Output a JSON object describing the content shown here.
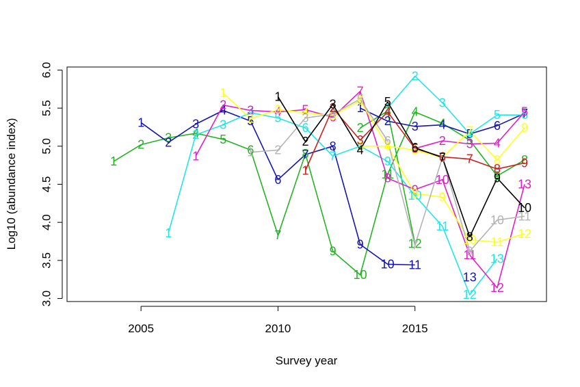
{
  "chart_data": {
    "type": "line",
    "xlabel": "Survey year",
    "ylabel": "Log10 (abundance index)",
    "xlim": [
      2002.3,
      2019.8
    ],
    "ylim": [
      2.96,
      6.04
    ],
    "xticks": [
      "2005",
      "2010",
      "2015"
    ],
    "yticks": [
      "3.0",
      "3.5",
      "4.0",
      "4.5",
      "5.0",
      "5.5",
      "6.0"
    ],
    "grid": false,
    "legend": "none",
    "series": [
      {
        "color": "#22B422",
        "points": [
          {
            "x": 2004,
            "y": 4.8,
            "label": "1"
          },
          {
            "x": 2005,
            "y": 5.02,
            "label": "2"
          },
          {
            "x": 2006,
            "y": 5.11,
            "label": "3"
          },
          {
            "x": 2007,
            "y": 5.17,
            "label": "4"
          },
          {
            "x": 2008,
            "y": 5.09,
            "label": "5"
          },
          {
            "x": 2009,
            "y": 4.95,
            "label": "6"
          },
          {
            "x": 2010,
            "y": 3.83,
            "label": "7"
          },
          {
            "x": 2011,
            "y": 4.9,
            "label": "8"
          },
          {
            "x": 2012,
            "y": 3.62,
            "label": "9"
          },
          {
            "x": 2013,
            "y": 3.31,
            "label": "10"
          },
          {
            "x": 2014,
            "y": 4.63,
            "label": "11"
          },
          {
            "x": 2015,
            "y": 5.45,
            "label": "4"
          },
          {
            "x": 2016,
            "y": 5.3,
            "label": "4"
          },
          {
            "x": 2017,
            "y": 5.08,
            "label": "5"
          },
          {
            "x": 2018,
            "y": 4.61,
            "label": "9"
          },
          {
            "x": 2019,
            "y": 4.82,
            "label": "8"
          }
        ]
      },
      {
        "color": "#22B422",
        "points": [
          {
            "x": 2013,
            "y": 5.24,
            "label": "2"
          },
          {
            "x": 2014,
            "y": 5.46,
            "label": "3"
          },
          {
            "x": 2015,
            "y": 3.72,
            "label": "12"
          }
        ]
      },
      {
        "color": "#1414B4",
        "points": [
          {
            "x": 2005,
            "y": 5.31,
            "label": "1"
          },
          {
            "x": 2006,
            "y": 5.05,
            "label": "2"
          },
          {
            "x": 2007,
            "y": 5.29,
            "label": "3"
          },
          {
            "x": 2008,
            "y": 5.47,
            "label": "4"
          },
          {
            "x": 2009,
            "y": 5.33,
            "label": "5"
          },
          {
            "x": 2010,
            "y": 4.56,
            "label": "6"
          },
          {
            "x": 2011,
            "y": 4.89,
            "label": "7"
          },
          {
            "x": 2012,
            "y": 5.0,
            "label": "8"
          },
          {
            "x": 2013,
            "y": 3.71,
            "label": "9"
          },
          {
            "x": 2014,
            "y": 3.45,
            "label": "10"
          },
          {
            "x": 2015,
            "y": 3.44,
            "label": "11"
          }
        ]
      },
      {
        "color": "#1414B4",
        "points": [
          {
            "x": 2013,
            "y": 5.5,
            "label": "1"
          },
          {
            "x": 2014,
            "y": 5.33,
            "label": "2"
          },
          {
            "x": 2015,
            "y": 5.26,
            "label": "3"
          },
          {
            "x": 2016,
            "y": 5.28,
            "label": "4"
          },
          {
            "x": 2017,
            "y": 5.16,
            "label": "5"
          },
          {
            "x": 2018,
            "y": 5.27,
            "label": "6"
          },
          {
            "x": 2019,
            "y": 5.43,
            "label": "7"
          }
        ]
      },
      {
        "color": "#1414B4",
        "points": [
          {
            "x": 2017,
            "y": 3.28,
            "label": "13"
          }
        ]
      },
      {
        "color": "#22E6E6",
        "points": [
          {
            "x": 2006,
            "y": 3.86,
            "label": "1"
          },
          {
            "x": 2007,
            "y": 5.15,
            "label": "2"
          },
          {
            "x": 2008,
            "y": 5.28,
            "label": "3"
          },
          {
            "x": 2009,
            "y": 5.44,
            "label": "4"
          },
          {
            "x": 2010,
            "y": 5.37,
            "label": "5"
          },
          {
            "x": 2011,
            "y": 5.24,
            "label": "6"
          },
          {
            "x": 2012,
            "y": 4.87,
            "label": "7"
          },
          {
            "x": 2013,
            "y": 5.0,
            "label": "8"
          },
          {
            "x": 2014,
            "y": 4.8,
            "label": "9"
          },
          {
            "x": 2015,
            "y": 4.35,
            "label": "10"
          },
          {
            "x": 2016,
            "y": 3.95,
            "label": "11"
          },
          {
            "x": 2017,
            "y": 3.05,
            "label": "12"
          },
          {
            "x": 2018,
            "y": 3.52,
            "label": "13"
          }
        ]
      },
      {
        "color": "#22E6E6",
        "points": [
          {
            "x": 2014,
            "y": 5.5,
            "label": "1"
          },
          {
            "x": 2015,
            "y": 5.92,
            "label": "2"
          },
          {
            "x": 2016,
            "y": 5.57,
            "label": "3"
          },
          {
            "x": 2017,
            "y": 5.16,
            "label": "4"
          },
          {
            "x": 2018,
            "y": 5.41,
            "label": "5"
          },
          {
            "x": 2019,
            "y": 5.41,
            "label": "6"
          }
        ]
      },
      {
        "color": "#E11EC8",
        "points": [
          {
            "x": 2007,
            "y": 4.87,
            "label": "1"
          },
          {
            "x": 2008,
            "y": 5.54,
            "label": "2"
          },
          {
            "x": 2009,
            "y": 5.47,
            "label": "3"
          },
          {
            "x": 2010,
            "y": 5.45,
            "label": "4"
          },
          {
            "x": 2011,
            "y": 5.48,
            "label": "5"
          },
          {
            "x": 2012,
            "y": 5.38,
            "label": "6"
          },
          {
            "x": 2013,
            "y": 5.72,
            "label": "7"
          },
          {
            "x": 2014,
            "y": 4.58,
            "label": "8"
          },
          {
            "x": 2015,
            "y": 4.43,
            "label": "9"
          },
          {
            "x": 2016,
            "y": 4.56,
            "label": "10"
          },
          {
            "x": 2017,
            "y": 3.57,
            "label": "11"
          },
          {
            "x": 2018,
            "y": 3.14,
            "label": "12"
          },
          {
            "x": 2019,
            "y": 4.5,
            "label": "13"
          }
        ]
      },
      {
        "color": "#E11EC8",
        "points": [
          {
            "x": 2015,
            "y": 4.97,
            "label": "1"
          },
          {
            "x": 2016,
            "y": 5.07,
            "label": "2"
          },
          {
            "x": 2017,
            "y": 5.03,
            "label": "3"
          },
          {
            "x": 2018,
            "y": 5.04,
            "label": "4"
          },
          {
            "x": 2019,
            "y": 5.45,
            "label": "5"
          }
        ]
      },
      {
        "color": "#FFFF1E",
        "points": [
          {
            "x": 2008,
            "y": 5.7,
            "label": "1"
          },
          {
            "x": 2009,
            "y": 5.36,
            "label": "2"
          },
          {
            "x": 2010,
            "y": 5.48,
            "label": "3"
          },
          {
            "x": 2011,
            "y": 5.44,
            "label": "4"
          },
          {
            "x": 2012,
            "y": 5.4,
            "label": "5"
          },
          {
            "x": 2013,
            "y": 5.6,
            "label": "6"
          },
          {
            "x": 2014,
            "y": 5.0,
            "label": "7"
          },
          {
            "x": 2015,
            "y": 4.38,
            "label": "8"
          },
          {
            "x": 2016,
            "y": 4.33,
            "label": "9"
          },
          {
            "x": 2017,
            "y": 3.77,
            "label": "10"
          },
          {
            "x": 2018,
            "y": 3.74,
            "label": "11"
          },
          {
            "x": 2019,
            "y": 3.85,
            "label": "12"
          }
        ]
      },
      {
        "color": "#FFFF1E",
        "points": [
          {
            "x": 2013,
            "y": 5.0,
            "label": "3"
          },
          {
            "x": 2014,
            "y": 5.0,
            "label": "4"
          },
          {
            "x": 2015,
            "y": 4.95,
            "label": "5"
          },
          {
            "x": 2016,
            "y": 4.85,
            "label": "6"
          },
          {
            "x": 2017,
            "y": 5.2,
            "label": "7"
          },
          {
            "x": 2018,
            "y": 4.82,
            "label": "8"
          },
          {
            "x": 2019,
            "y": 5.24,
            "label": "9"
          }
        ]
      },
      {
        "color": "#B4B4B4",
        "points": [
          {
            "x": 2009,
            "y": 4.92,
            "label": "1"
          },
          {
            "x": 2010,
            "y": 4.95,
            "label": "2"
          },
          {
            "x": 2011,
            "y": 5.37,
            "label": "3"
          },
          {
            "x": 2012,
            "y": 5.42,
            "label": "4"
          },
          {
            "x": 2013,
            "y": 5.62,
            "label": "5"
          },
          {
            "x": 2014,
            "y": 5.07,
            "label": "6"
          },
          {
            "x": 2015,
            "y": 3.7,
            "label": "7"
          },
          {
            "x": 2016,
            "y": 4.85,
            "label": "8"
          },
          {
            "x": 2017,
            "y": 3.62,
            "label": "9"
          },
          {
            "x": 2018,
            "y": 4.03,
            "label": "10"
          },
          {
            "x": 2019,
            "y": 4.08,
            "label": "11"
          }
        ]
      },
      {
        "color": "#CC1E1E",
        "points": [
          {
            "x": 2011,
            "y": 4.68,
            "label": "1"
          },
          {
            "x": 2012,
            "y": 5.5,
            "label": "2"
          },
          {
            "x": 2013,
            "y": 5.08,
            "label": "3"
          },
          {
            "x": 2014,
            "y": 5.45,
            "label": "4"
          },
          {
            "x": 2015,
            "y": 4.97,
            "label": "5"
          },
          {
            "x": 2016,
            "y": 4.86,
            "label": "6"
          },
          {
            "x": 2017,
            "y": 4.83,
            "label": "7"
          },
          {
            "x": 2018,
            "y": 4.7,
            "label": "8"
          },
          {
            "x": 2019,
            "y": 4.78,
            "label": "9"
          }
        ]
      },
      {
        "color": "#000000",
        "points": [
          {
            "x": 2010,
            "y": 5.65,
            "label": "1"
          },
          {
            "x": 2011,
            "y": 5.06,
            "label": "2"
          },
          {
            "x": 2012,
            "y": 5.55,
            "label": "3"
          },
          {
            "x": 2013,
            "y": 4.95,
            "label": "4"
          },
          {
            "x": 2014,
            "y": 5.58,
            "label": "5"
          },
          {
            "x": 2015,
            "y": 4.98,
            "label": "6"
          },
          {
            "x": 2016,
            "y": 4.85,
            "label": "7"
          },
          {
            "x": 2017,
            "y": 3.81,
            "label": "8"
          },
          {
            "x": 2018,
            "y": 4.58,
            "label": "9"
          },
          {
            "x": 2019,
            "y": 4.19,
            "label": "10"
          }
        ]
      }
    ]
  }
}
